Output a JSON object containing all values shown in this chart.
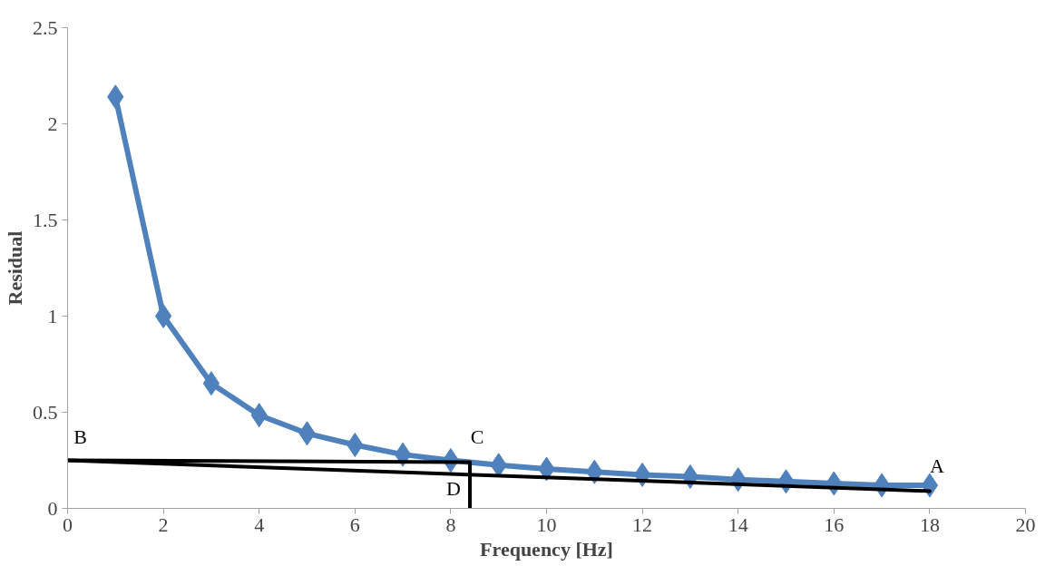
{
  "chart_data": {
    "type": "line",
    "xlabel": "Frequency [Hz]",
    "ylabel": "Residual",
    "xlim": [
      0,
      20
    ],
    "xticks": [
      0,
      2,
      4,
      6,
      8,
      10,
      12,
      14,
      16,
      18,
      20
    ],
    "ylim": [
      0,
      2.5
    ],
    "yticks": [
      0,
      0.5,
      1,
      1.5,
      2,
      2.5
    ],
    "grid": false,
    "series": [
      {
        "color": "#4f81bd",
        "marker": "diamond",
        "x": [
          1,
          2,
          3,
          4,
          5,
          6,
          7,
          8,
          9,
          10,
          11,
          12,
          13,
          14,
          15,
          16,
          17,
          18
        ],
        "values": [
          2.14,
          1.0,
          0.65,
          0.485,
          0.39,
          0.33,
          0.28,
          0.25,
          0.225,
          0.205,
          0.19,
          0.175,
          0.165,
          0.15,
          0.14,
          0.13,
          0.12,
          0.12
        ]
      },
      {
        "color": "#000000",
        "marker": "none",
        "x": [
          0,
          18
        ],
        "values": [
          0.25,
          0.09
        ]
      },
      {
        "color": "#000000",
        "marker": "none",
        "x": [
          0,
          8.4,
          8.4
        ],
        "values": [
          0.25,
          0.24,
          0
        ]
      }
    ],
    "annotations": [
      {
        "text": "A",
        "x": 18,
        "y": 0.09
      },
      {
        "text": "B",
        "x": 0,
        "y": 0.25
      },
      {
        "text": "C",
        "x": 8.4,
        "y": 0.24
      },
      {
        "text": "D",
        "x": 8.4,
        "y": 0
      }
    ]
  }
}
